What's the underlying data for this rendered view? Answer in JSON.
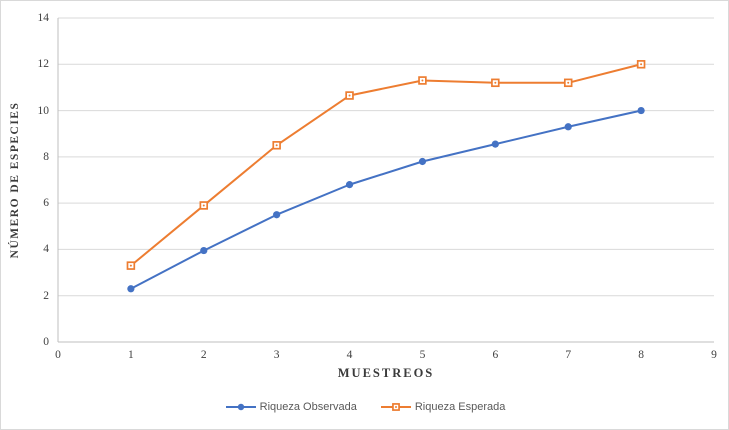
{
  "chart_data": {
    "type": "line",
    "title": "",
    "xlabel": "MUESTREOS",
    "ylabel": "NÚMERO DE ESPECIES",
    "x": [
      1,
      2,
      3,
      4,
      5,
      6,
      7,
      8
    ],
    "series": [
      {
        "name": "Riqueza Observada",
        "color": "#4472C4",
        "marker": "circle",
        "values": [
          2.3,
          3.95,
          5.5,
          6.8,
          7.8,
          8.55,
          9.3,
          10.0
        ]
      },
      {
        "name": "Riqueza Esperada",
        "color": "#ED7D31",
        "marker": "square",
        "values": [
          3.3,
          5.9,
          8.5,
          10.65,
          11.3,
          11.2,
          11.2,
          12.0
        ]
      }
    ],
    "xlim": [
      0,
      9
    ],
    "ylim": [
      0,
      14
    ],
    "xticks": [
      0,
      1,
      2,
      3,
      4,
      5,
      6,
      7,
      8,
      9
    ],
    "yticks": [
      0,
      2,
      4,
      6,
      8,
      10,
      12,
      14
    ],
    "grid": "horizontal",
    "legend_position": "bottom",
    "colors": {
      "gridline": "#D9D9D9",
      "axis": "#BFBFBF",
      "tick_text": "#404040",
      "axis_title_text": "#3B3B3B",
      "legend_text": "#595959",
      "border": "#D9D9D9",
      "background": "#FFFFFF"
    }
  }
}
